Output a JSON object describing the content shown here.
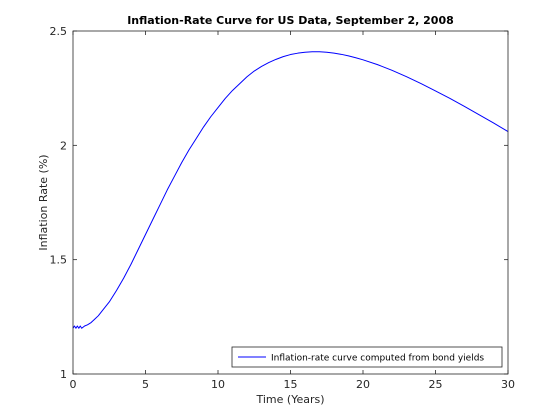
{
  "chart_data": {
    "type": "line",
    "title": "Inflation-Rate Curve for US Data, September 2, 2008",
    "xlabel": "Time (Years)",
    "ylabel": "Inflation Rate (%)",
    "xlim": [
      0,
      30
    ],
    "ylim": [
      1,
      2.5
    ],
    "xticks": [
      0,
      5,
      10,
      15,
      20,
      25,
      30
    ],
    "yticks": [
      1,
      1.5,
      2,
      2.5
    ],
    "xtick_labels": [
      "0",
      "5",
      "10",
      "15",
      "20",
      "25",
      "30"
    ],
    "ytick_labels": [
      "1",
      "1.5",
      "2",
      "2.5"
    ],
    "grid": false,
    "box": true,
    "legend_location": "bottom-right",
    "series": [
      {
        "name": "Inflation-rate curve computed from bond yields",
        "color": "#0000ff",
        "x": [
          0,
          0.1,
          0.2,
          0.3,
          0.4,
          0.5,
          0.6,
          0.8,
          1,
          1.25,
          1.5,
          1.75,
          2,
          2.5,
          3,
          3.5,
          4,
          4.5,
          5,
          5.5,
          6,
          6.5,
          7,
          7.5,
          8,
          8.5,
          9,
          9.5,
          10,
          10.5,
          11,
          11.5,
          12,
          12.5,
          13,
          13.5,
          14,
          14.5,
          15,
          15.5,
          16,
          16.5,
          17,
          17.5,
          18,
          18.5,
          19,
          19.5,
          20,
          21,
          22,
          23,
          24,
          25,
          26,
          27,
          28,
          29,
          30
        ],
        "y": [
          1.2,
          1.21,
          1.2,
          1.21,
          1.2,
          1.21,
          1.2,
          1.21,
          1.215,
          1.225,
          1.24,
          1.255,
          1.275,
          1.315,
          1.365,
          1.42,
          1.48,
          1.545,
          1.61,
          1.675,
          1.74,
          1.805,
          1.865,
          1.925,
          1.98,
          2.03,
          2.08,
          2.125,
          2.165,
          2.205,
          2.24,
          2.27,
          2.3,
          2.325,
          2.345,
          2.362,
          2.376,
          2.388,
          2.397,
          2.403,
          2.407,
          2.409,
          2.409,
          2.407,
          2.403,
          2.398,
          2.391,
          2.383,
          2.374,
          2.353,
          2.328,
          2.3,
          2.27,
          2.238,
          2.205,
          2.17,
          2.134,
          2.098,
          2.06
        ]
      }
    ]
  }
}
